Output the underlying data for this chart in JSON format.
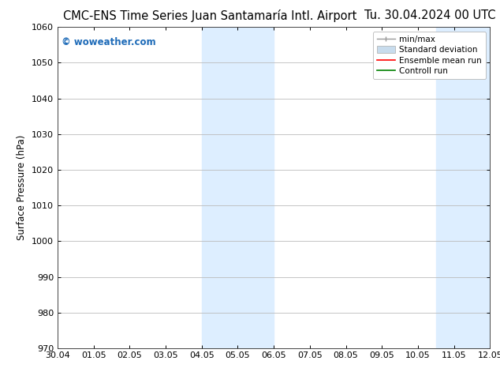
{
  "title_left": "CMC-ENS Time Series Juan Santamaría Intl. Airport",
  "title_right": "Tu. 30.04.2024 00 UTC",
  "ylabel": "Surface Pressure (hPa)",
  "ylim": [
    970,
    1060
  ],
  "yticks": [
    970,
    980,
    990,
    1000,
    1010,
    1020,
    1030,
    1040,
    1050,
    1060
  ],
  "xtick_labels": [
    "30.04",
    "01.05",
    "02.05",
    "03.05",
    "04.05",
    "05.05",
    "06.05",
    "07.05",
    "08.05",
    "09.05",
    "10.05",
    "11.05",
    "12.05"
  ],
  "shaded_regions": [
    {
      "xstart": 4.0,
      "xend": 6.0,
      "color": "#ddeeff"
    },
    {
      "xstart": 10.5,
      "xend": 12.5,
      "color": "#ddeeff"
    }
  ],
  "watermark": "© woweather.com",
  "watermark_color": "#1e6bb8",
  "legend_labels": [
    "min/max",
    "Standard deviation",
    "Ensemble mean run",
    "Controll run"
  ],
  "legend_colors": [
    "#aaaaaa",
    "#c8dced",
    "red",
    "green"
  ],
  "bg_color": "#ffffff",
  "plot_bg_color": "#ffffff",
  "grid_color": "#bbbbbb",
  "title_fontsize": 10.5,
  "tick_fontsize": 8,
  "ylabel_fontsize": 8.5,
  "legend_fontsize": 7.5
}
